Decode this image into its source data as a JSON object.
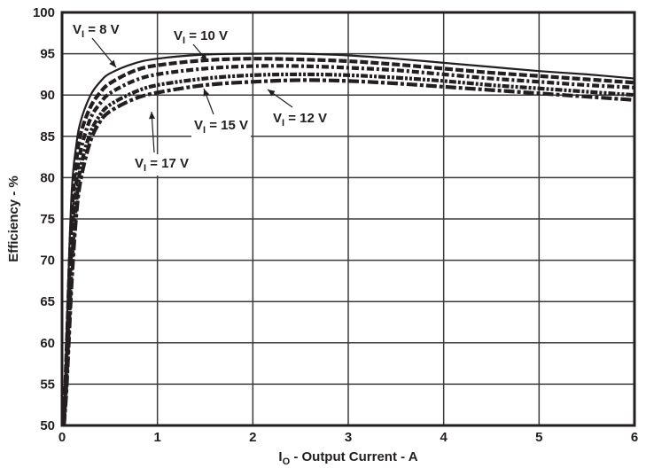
{
  "chart_data": {
    "type": "line",
    "title": "",
    "xlabel": "I_O - Output Current - A",
    "xlabel_main": "I",
    "xlabel_sub": "O",
    "xlabel_rest": " - Output Current - A",
    "ylabel": "Efficiency - %",
    "xlim": [
      0,
      6
    ],
    "ylim": [
      50,
      100
    ],
    "xticks": [
      0,
      1,
      2,
      3,
      4,
      5,
      6
    ],
    "yticks": [
      50,
      55,
      60,
      65,
      70,
      75,
      80,
      85,
      90,
      95,
      100
    ],
    "grid": true,
    "legend_position": "inline annotations",
    "x": [
      0.02,
      0.05,
      0.1,
      0.15,
      0.2,
      0.3,
      0.4,
      0.5,
      0.75,
      1.0,
      1.5,
      2.0,
      2.5,
      3.0,
      3.5,
      4.0,
      4.5,
      5.0,
      5.5,
      6.0
    ],
    "series": [
      {
        "name": "V_I = 8 V",
        "label": "8 V",
        "style": "solid",
        "values": [
          50,
          62,
          78,
          84,
          87,
          90,
          91.6,
          92.6,
          93.8,
          94.4,
          94.9,
          95.0,
          95.0,
          94.8,
          94.4,
          93.9,
          93.4,
          92.9,
          92.5,
          92.0
        ]
      },
      {
        "name": "V_I = 10 V",
        "label": "10 V",
        "style": "dash",
        "values": [
          50,
          60,
          75,
          82,
          85.5,
          88.6,
          90.3,
          91.4,
          92.9,
          93.6,
          94.2,
          94.4,
          94.3,
          94.1,
          93.7,
          93.2,
          92.7,
          92.3,
          91.9,
          91.5
        ]
      },
      {
        "name": "V_I = 12 V",
        "label": "12 V",
        "style": "dashdot",
        "values": [
          50,
          58,
          72,
          79.5,
          83.5,
          87.2,
          89.0,
          90.2,
          91.7,
          92.5,
          93.2,
          93.5,
          93.5,
          93.3,
          93.0,
          92.5,
          92.0,
          91.6,
          91.2,
          90.9
        ]
      },
      {
        "name": "V_I = 15 V",
        "label": "15 V",
        "style": "dashdotdot",
        "values": [
          50,
          56,
          69,
          77,
          81.5,
          85.5,
          87.6,
          88.8,
          90.3,
          91.2,
          92.0,
          92.4,
          92.5,
          92.4,
          92.1,
          91.7,
          91.2,
          90.8,
          90.4,
          90.0
        ]
      },
      {
        "name": "V_I = 17 V",
        "label": "17 V",
        "style": "longdash",
        "values": [
          50,
          55,
          67,
          75.5,
          80,
          84.5,
          86.8,
          88.0,
          89.5,
          90.3,
          91.2,
          91.6,
          91.8,
          91.7,
          91.4,
          91.0,
          90.6,
          90.2,
          89.8,
          89.4
        ]
      }
    ],
    "annotations": [
      {
        "text_main": "V",
        "text_sub": "I",
        "text_rest": " = 8 V",
        "pos": [
          82,
          38
        ],
        "arrow_to": [
          131,
          76
        ]
      },
      {
        "text_main": "V",
        "text_sub": "I",
        "text_rest": " = 10 V",
        "pos": [
          196,
          45
        ],
        "arrow_to": [
          234,
          69
        ]
      },
      {
        "text_main": "V",
        "text_sub": "I",
        "text_rest": " = 12 V",
        "pos": [
          308,
          138
        ],
        "arrow_to": [
          302,
          101
        ]
      },
      {
        "text_main": "V",
        "text_sub": "I",
        "text_rest": " = 15 V",
        "pos": [
          219,
          146
        ],
        "arrow_to": [
          230,
          100
        ]
      },
      {
        "text_main": "V",
        "text_sub": "I",
        "text_rest": " = 17 V",
        "pos": [
          152,
          189
        ],
        "arrow_to": [
          171,
          126
        ]
      }
    ]
  }
}
